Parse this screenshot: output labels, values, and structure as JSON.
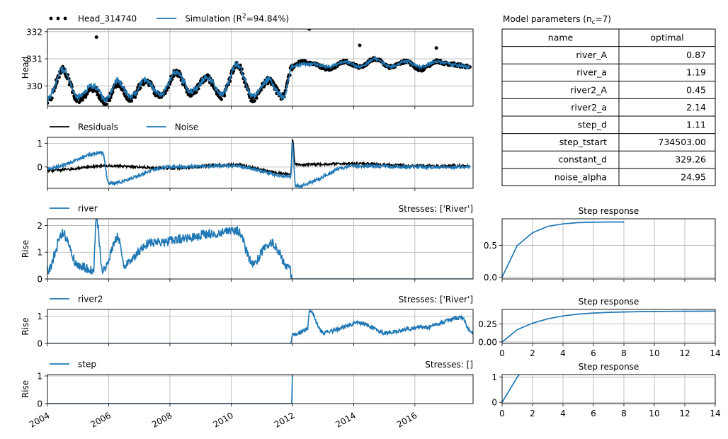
{
  "chart_data": [
    {
      "id": "head",
      "type": "line",
      "ylabel": "Head",
      "ylim": [
        329.25,
        332.1
      ],
      "yticks": [
        330,
        331,
        332
      ],
      "xlim": [
        2004.0,
        2017.9
      ],
      "xticks": [
        2004,
        2006,
        2008,
        2010,
        2012,
        2014,
        2016
      ],
      "xticklabels_shown": false,
      "legend": {
        "position": "top-left",
        "entries": [
          {
            "name": "Head_314740",
            "marker": "dots",
            "color": "#000000"
          },
          {
            "name": "Simulation (R²=94.84%)",
            "name_parts": [
              "Simulation (R",
              "2",
              "=94.84%)"
            ],
            "marker": "line",
            "color": "#1f77b4"
          }
        ]
      },
      "series": [
        {
          "name": "Head_314740",
          "style": "scatter",
          "color": "#000000",
          "pattern": "observed",
          "x": [
            2004.0,
            2004.5,
            2005.0,
            2005.5,
            2005.9,
            2006.3,
            2006.7,
            2007.2,
            2007.7,
            2008.2,
            2008.7,
            2009.2,
            2009.7,
            2010.2,
            2010.7,
            2011.2,
            2011.7,
            2012.0,
            2012.3,
            2012.7,
            2013.2,
            2013.7,
            2014.2,
            2014.7,
            2015.2,
            2015.7,
            2016.2,
            2016.7,
            2017.2,
            2017.8
          ],
          "y": [
            329.4,
            330.6,
            329.5,
            329.9,
            329.4,
            330.1,
            329.5,
            330.2,
            329.6,
            330.5,
            329.7,
            330.3,
            329.6,
            330.8,
            329.5,
            330.2,
            329.6,
            330.7,
            330.9,
            330.8,
            330.6,
            330.9,
            330.7,
            331.0,
            330.7,
            330.9,
            330.6,
            330.9,
            330.8,
            330.7
          ],
          "extremes": [
            [
              2005.6,
              331.8
            ],
            [
              2012.55,
              332.1
            ],
            [
              2014.2,
              331.5
            ],
            [
              2016.7,
              331.4
            ]
          ]
        },
        {
          "name": "Simulation",
          "style": "line",
          "color": "#1f77b4",
          "pattern": "simulated",
          "x": [
            2004.0,
            2004.5,
            2005.0,
            2005.5,
            2005.9,
            2006.3,
            2006.7,
            2007.2,
            2007.7,
            2008.2,
            2008.7,
            2009.2,
            2009.7,
            2010.2,
            2010.7,
            2011.2,
            2011.7,
            2012.0,
            2012.3,
            2012.7,
            2013.2,
            2013.7,
            2014.2,
            2014.7,
            2015.2,
            2015.7,
            2016.2,
            2016.7,
            2017.2,
            2017.8
          ],
          "y": [
            329.5,
            330.6,
            329.6,
            330.0,
            329.5,
            330.2,
            329.6,
            330.2,
            329.7,
            330.5,
            329.8,
            330.3,
            329.7,
            330.8,
            329.6,
            330.2,
            329.6,
            330.7,
            330.8,
            330.8,
            330.7,
            330.9,
            330.7,
            331.0,
            330.7,
            330.9,
            330.7,
            330.9,
            330.8,
            330.7
          ]
        }
      ]
    },
    {
      "id": "residuals",
      "type": "line",
      "ylim": [
        -0.9,
        1.25
      ],
      "yticks": [
        0,
        1
      ],
      "xlim": [
        2004.0,
        2017.9
      ],
      "xticks": [
        2004,
        2006,
        2008,
        2010,
        2012,
        2014,
        2016
      ],
      "xticklabels_shown": false,
      "legend": {
        "position": "top-left",
        "entries": [
          {
            "name": "Residuals",
            "marker": "line",
            "color": "#000000"
          },
          {
            "name": "Noise",
            "marker": "line",
            "color": "#1f77b4"
          }
        ]
      },
      "series": [
        {
          "name": "Residuals",
          "color": "#000000",
          "pattern": "residual",
          "x": [
            2004.0,
            2006.0,
            2008.0,
            2010.0,
            2011.95,
            2012.0,
            2012.1,
            2014.0,
            2016.0,
            2017.8
          ],
          "y": [
            -0.15,
            0.05,
            -0.05,
            0.1,
            -0.3,
            1.15,
            0.1,
            0.15,
            0.05,
            0.05
          ]
        },
        {
          "name": "Noise",
          "color": "#1f77b4",
          "pattern": "noise",
          "x": [
            2004.0,
            2005.8,
            2006.0,
            2008.0,
            2010.0,
            2011.95,
            2012.0,
            2012.1,
            2014.0,
            2016.0,
            2017.8
          ],
          "y": [
            -0.05,
            0.6,
            -0.7,
            0.0,
            0.05,
            -0.4,
            1.05,
            -0.8,
            0.05,
            0.0,
            0.0
          ]
        }
      ]
    },
    {
      "id": "river",
      "type": "line",
      "ylabel": "Rise",
      "title_right": "Stresses: ['River']",
      "ylim": [
        0,
        2.25
      ],
      "yticks": [
        0,
        1,
        2
      ],
      "xlim": [
        2004.0,
        2017.9
      ],
      "xticks": [
        2004,
        2006,
        2008,
        2010,
        2012,
        2014,
        2016
      ],
      "xticklabels_shown": false,
      "legend": {
        "position": "top-left",
        "entries": [
          {
            "name": "river",
            "marker": "line",
            "color": "#1f77b4"
          }
        ]
      },
      "series": [
        {
          "name": "river",
          "color": "#1f77b4",
          "pattern": "river",
          "x": [
            2004.0,
            2004.5,
            2005.0,
            2005.5,
            2005.6,
            2005.8,
            2006.3,
            2006.5,
            2007.3,
            2008.5,
            2009.3,
            2010.2,
            2010.7,
            2011.3,
            2011.9,
            2012.0,
            2017.9
          ],
          "y": [
            0.3,
            1.7,
            0.5,
            0.3,
            2.3,
            0.3,
            1.6,
            0.5,
            1.3,
            1.5,
            1.7,
            1.8,
            0.6,
            1.4,
            0.4,
            0.0,
            0.0
          ]
        }
      ]
    },
    {
      "id": "river2",
      "type": "line",
      "ylabel": "Rise",
      "title_right": "Stresses: ['River']",
      "ylim": [
        0,
        1.25
      ],
      "yticks": [
        0,
        1
      ],
      "xlim": [
        2004.0,
        2017.9
      ],
      "xticks": [
        2004,
        2006,
        2008,
        2010,
        2012,
        2014,
        2016
      ],
      "xticklabels_shown": false,
      "legend": {
        "position": "top-left",
        "entries": [
          {
            "name": "river2",
            "marker": "line",
            "color": "#1f77b4"
          }
        ]
      },
      "series": [
        {
          "name": "river2",
          "color": "#1f77b4",
          "pattern": "river2",
          "x": [
            2004.0,
            2011.95,
            2012.0,
            2012.5,
            2012.55,
            2013.0,
            2014.2,
            2015.0,
            2016.3,
            2017.5,
            2017.9
          ],
          "y": [
            0.0,
            0.0,
            0.3,
            0.5,
            1.25,
            0.4,
            0.75,
            0.4,
            0.6,
            0.95,
            0.35
          ]
        }
      ]
    },
    {
      "id": "step",
      "type": "line",
      "ylabel": "Rise",
      "title_right": "Stresses: []",
      "ylim": [
        0,
        1.05
      ],
      "yticks": [
        0,
        1
      ],
      "xlim": [
        2004.0,
        2017.9
      ],
      "xticks": [
        2004,
        2006,
        2008,
        2010,
        2012,
        2014,
        2016
      ],
      "xticklabels": [
        "2004",
        "2006",
        "2008",
        "2010",
        "2012",
        "2014",
        "2016"
      ],
      "xticklabels_shown": true,
      "legend": {
        "position": "top-left",
        "entries": [
          {
            "name": "step",
            "marker": "line",
            "color": "#1f77b4"
          }
        ]
      },
      "series": [
        {
          "name": "step",
          "color": "#1f77b4",
          "x": [
            2004.0,
            2011.98,
            2012.0,
            2012.02
          ],
          "y": [
            0.0,
            0.0,
            1.05,
            1.05
          ]
        }
      ]
    },
    {
      "id": "step_response_river",
      "type": "line",
      "title": "Step response",
      "xlim": [
        0,
        14
      ],
      "xticks": [
        0,
        2,
        4,
        6,
        8,
        10,
        12,
        14
      ],
      "xticklabels_shown": false,
      "ylim": [
        -0.03,
        0.92
      ],
      "yticks": [
        0.0,
        0.5
      ],
      "yticklabels": [
        "0.0",
        "0.5"
      ],
      "series": [
        {
          "name": "",
          "color": "#1f77b4",
          "x": [
            0,
            1,
            2,
            3,
            4,
            5,
            6,
            7,
            8
          ],
          "y": [
            0.0,
            0.5,
            0.7,
            0.8,
            0.84,
            0.86,
            0.865,
            0.87,
            0.87
          ]
        }
      ]
    },
    {
      "id": "step_response_river2",
      "type": "line",
      "title": "Step response",
      "xlim": [
        0,
        14
      ],
      "xticks": [
        0,
        2,
        4,
        6,
        8,
        10,
        12,
        14
      ],
      "xticklabels": [
        "0",
        "2",
        "4",
        "6",
        "8",
        "10",
        "12",
        "14"
      ],
      "xticklabels_shown": true,
      "ylim": [
        -0.02,
        0.45
      ],
      "yticks": [
        0.0,
        0.25
      ],
      "yticklabels": [
        "0.00",
        "0.25"
      ],
      "series": [
        {
          "name": "",
          "color": "#1f77b4",
          "x": [
            0,
            1,
            2,
            3,
            4,
            5,
            6,
            7,
            8,
            9,
            10,
            11,
            12,
            13,
            14
          ],
          "y": [
            0.0,
            0.17,
            0.26,
            0.32,
            0.36,
            0.385,
            0.4,
            0.41,
            0.415,
            0.42,
            0.422,
            0.424,
            0.425,
            0.426,
            0.427
          ]
        }
      ]
    },
    {
      "id": "step_response_step",
      "type": "line",
      "title": "Step response",
      "xlim": [
        0,
        14
      ],
      "xticks": [
        0,
        2,
        4,
        6,
        8,
        10,
        12,
        14
      ],
      "xticklabels": [
        "0",
        "2",
        "4",
        "6",
        "8",
        "10",
        "12",
        "14"
      ],
      "xticklabels_shown": true,
      "ylim": [
        -0.05,
        1.1
      ],
      "yticks": [
        0,
        1
      ],
      "yticklabels": [
        "0",
        "1"
      ],
      "series": [
        {
          "name": "",
          "color": "#1f77b4",
          "x": [
            0,
            1.0,
            1.15
          ],
          "y": [
            0.0,
            1.0,
            1.12
          ]
        }
      ]
    }
  ],
  "parameters_table": {
    "title_parts": [
      "Model parameters (n",
      "c",
      "=7)"
    ],
    "columns": [
      "name",
      "optimal"
    ],
    "rows": [
      {
        "name": "river_A",
        "optimal": "0.87"
      },
      {
        "name": "river_a",
        "optimal": "1.19"
      },
      {
        "name": "river2_A",
        "optimal": "0.45"
      },
      {
        "name": "river2_a",
        "optimal": "2.14"
      },
      {
        "name": "step_d",
        "optimal": "1.11"
      },
      {
        "name": "step_tstart",
        "optimal": "734503.00"
      },
      {
        "name": "constant_d",
        "optimal": "329.26"
      },
      {
        "name": "noise_alpha",
        "optimal": "24.95"
      }
    ]
  }
}
